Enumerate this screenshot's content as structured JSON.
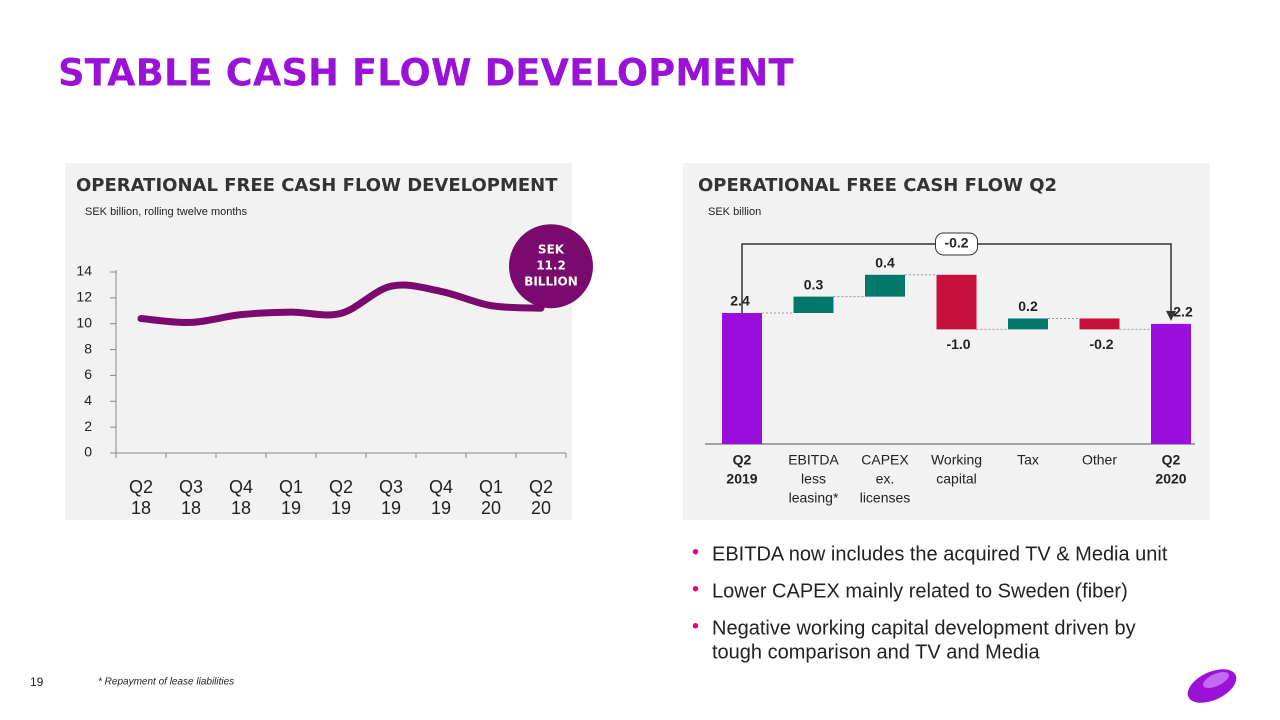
{
  "title": "STABLE CASH FLOW DEVELOPMENT",
  "chart_data": [
    {
      "type": "line",
      "title": "OPERATIONAL FREE CASH FLOW DEVELOPMENT",
      "subtitle": "SEK billion, rolling twelve months",
      "categories": [
        [
          "Q2",
          "18"
        ],
        [
          "Q3",
          "18"
        ],
        [
          "Q4",
          "18"
        ],
        [
          "Q1",
          "19"
        ],
        [
          "Q2",
          "19"
        ],
        [
          "Q3",
          "19"
        ],
        [
          "Q4",
          "19"
        ],
        [
          "Q1",
          "20"
        ],
        [
          "Q2",
          "20"
        ]
      ],
      "values": [
        10.4,
        10.1,
        10.7,
        10.9,
        10.8,
        12.9,
        12.5,
        11.4,
        11.2
      ],
      "color": "#7a0a6e",
      "ylim": [
        0,
        14
      ],
      "yticks": [
        0,
        2,
        4,
        6,
        8,
        10,
        12,
        14
      ],
      "annotation": [
        "SEK",
        "11.2",
        "BILLION"
      ]
    },
    {
      "type": "waterfall",
      "title": "OPERATIONAL FREE CASH FLOW Q2",
      "subtitle": "SEK billion",
      "categories": [
        [
          "Q2",
          "2019"
        ],
        [
          "EBITDA",
          "less",
          "leasing*"
        ],
        [
          "CAPEX",
          "ex.",
          "licenses"
        ],
        [
          "Working",
          "capital"
        ],
        [
          "Tax"
        ],
        [
          "Other"
        ],
        [
          "Q2",
          "2020"
        ]
      ],
      "values": [
        2.4,
        0.3,
        0.4,
        -1.0,
        0.2,
        -0.2,
        2.2
      ],
      "value_labels": [
        "2.4",
        "0.3",
        "0.4",
        "-1.0",
        "0.2",
        "-0.2",
        "2.2"
      ],
      "colors": [
        "#9a0ddb",
        "#00796b",
        "#00796b",
        "#c8103c",
        "#00796b",
        "#c8103c",
        "#9a0ddb"
      ],
      "annotation": "-0.2"
    }
  ],
  "bullets": [
    [
      "EBITDA now includes the acquired TV & Media unit"
    ],
    [
      "Lower CAPEX mainly related to Sweden (fiber)"
    ],
    [
      "Negative working capital development driven by",
      "tough comparison and TV and Media"
    ]
  ],
  "page_number": "19",
  "footnote": "* Repayment of lease liabilities"
}
